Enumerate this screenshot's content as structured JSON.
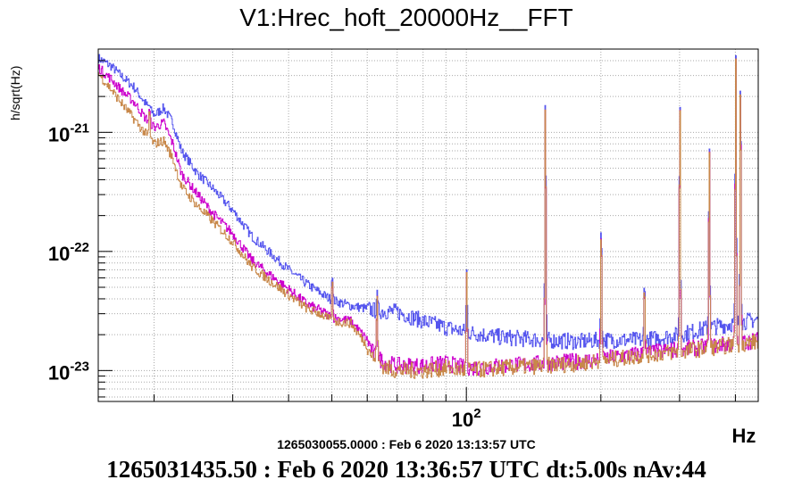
{
  "title": "V1:Hrec_hoft_20000Hz__FFT",
  "ylabel": "h/sqrt(Hz)",
  "xunit": "Hz",
  "reference_label": "1265030055.0000 : Feb  6 2020 13:13:57 UTC",
  "footer": "1265031435.50 : Feb  6 2020 13:36:57 UTC dt:5.00s nAv:44",
  "colors": {
    "current": "#5555ee",
    "reference": "#cc00cc",
    "third": "#c8884a",
    "reference_label": "#cc00cc",
    "grid": "#aaaaaa"
  },
  "chart_data": {
    "type": "line",
    "title": "V1:Hrec_hoft_20000Hz__FFT",
    "ylabel": "h/sqrt(Hz)",
    "xlabel": "Hz",
    "xscale": "log",
    "yscale": "log",
    "xlim": [
      15,
      450
    ],
    "ylim": [
      5.5e-24,
      5e-21
    ],
    "grid": true,
    "y_ticks": [
      {
        "value": 1e-21,
        "mant": "10",
        "exp": "-21"
      },
      {
        "value": 1e-22,
        "mant": "10",
        "exp": "-22"
      },
      {
        "value": 1e-23,
        "mant": "10",
        "exp": "-23"
      }
    ],
    "x_ticks": [
      {
        "value": 100,
        "mant": "10",
        "exp": "2"
      }
    ],
    "series": [
      {
        "color": "#5555ee",
        "points": [
          [
            15,
            4.2e-21
          ],
          [
            16,
            3.6e-21
          ],
          [
            17,
            2.9e-21
          ],
          [
            18,
            2.4e-21
          ],
          [
            19,
            1.8e-21
          ],
          [
            20,
            1.4e-21
          ],
          [
            21,
            1.6e-21
          ],
          [
            22,
            1.2e-21
          ],
          [
            23,
            7e-22
          ],
          [
            25,
            4.5e-22
          ],
          [
            27,
            3.4e-22
          ],
          [
            30,
            2.2e-22
          ],
          [
            33,
            1.35e-22
          ],
          [
            36,
            1e-22
          ],
          [
            40,
            7e-23
          ],
          [
            44,
            5.3e-23
          ],
          [
            47,
            4.5e-23
          ],
          [
            50,
            3.9e-23
          ],
          [
            55,
            3.5e-23
          ],
          [
            60,
            3.3e-23
          ],
          [
            62,
            3.2e-23
          ],
          [
            70,
            3.1e-23
          ],
          [
            80,
            2.6e-23
          ],
          [
            90,
            2.3e-23
          ],
          [
            100,
            2.1e-23
          ],
          [
            120,
            1.9e-23
          ],
          [
            150,
            1.8e-23
          ],
          [
            180,
            1.75e-23
          ],
          [
            200,
            1.8e-23
          ],
          [
            250,
            1.8e-23
          ],
          [
            300,
            2e-23
          ],
          [
            350,
            2.3e-23
          ],
          [
            400,
            2.5e-23
          ],
          [
            450,
            2.7e-23
          ]
        ]
      },
      {
        "color": "#cc00cc",
        "points": [
          [
            15,
            3.5e-21
          ],
          [
            16,
            2.8e-21
          ],
          [
            17,
            2.2e-21
          ],
          [
            18,
            1.8e-21
          ],
          [
            19,
            1.35e-21
          ],
          [
            20,
            1.1e-21
          ],
          [
            21,
            1.2e-21
          ],
          [
            22,
            8e-22
          ],
          [
            23,
            4.5e-22
          ],
          [
            25,
            3e-22
          ],
          [
            27,
            2.1e-22
          ],
          [
            30,
            1.4e-22
          ],
          [
            33,
            8.5e-23
          ],
          [
            36,
            6.5e-23
          ],
          [
            40,
            4.8e-23
          ],
          [
            44,
            3.6e-23
          ],
          [
            47,
            3.2e-23
          ],
          [
            50,
            2.8e-23
          ],
          [
            55,
            2.6e-23
          ],
          [
            60,
            1.8e-23
          ],
          [
            62,
            1.35e-23
          ],
          [
            66,
            1.15e-23
          ],
          [
            70,
            1.1e-23
          ],
          [
            80,
            1.1e-23
          ],
          [
            90,
            1.15e-23
          ],
          [
            100,
            1.05e-23
          ],
          [
            120,
            1.1e-23
          ],
          [
            150,
            1.15e-23
          ],
          [
            180,
            1.2e-23
          ],
          [
            200,
            1.25e-23
          ],
          [
            250,
            1.4e-23
          ],
          [
            300,
            1.5e-23
          ],
          [
            350,
            1.6e-23
          ],
          [
            400,
            1.7e-23
          ],
          [
            450,
            1.8e-23
          ]
        ]
      },
      {
        "color": "#c8884a",
        "points": [
          [
            15,
            3.1e-21
          ],
          [
            16,
            2.3e-21
          ],
          [
            17,
            1.7e-21
          ],
          [
            18,
            1.3e-21
          ],
          [
            19,
            1e-21
          ],
          [
            20,
            8e-22
          ],
          [
            21,
            8.5e-22
          ],
          [
            22,
            6e-22
          ],
          [
            23,
            3.5e-22
          ],
          [
            25,
            2.4e-22
          ],
          [
            27,
            1.8e-22
          ],
          [
            30,
            1.2e-22
          ],
          [
            33,
            7.5e-23
          ],
          [
            36,
            5.8e-23
          ],
          [
            40,
            4.3e-23
          ],
          [
            44,
            3.3e-23
          ],
          [
            47,
            3e-23
          ],
          [
            50,
            2.6e-23
          ],
          [
            55,
            2.5e-23
          ],
          [
            60,
            1.6e-23
          ],
          [
            62,
            1.25e-23
          ],
          [
            66,
            1.05e-23
          ],
          [
            70,
            1e-23
          ],
          [
            80,
            1e-23
          ],
          [
            90,
            1.05e-23
          ],
          [
            100,
            1e-23
          ],
          [
            120,
            1.05e-23
          ],
          [
            150,
            1.1e-23
          ],
          [
            180,
            1.15e-23
          ],
          [
            200,
            1.2e-23
          ],
          [
            250,
            1.35e-23
          ],
          [
            300,
            1.45e-23
          ],
          [
            350,
            1.55e-23
          ],
          [
            400,
            1.65e-23
          ],
          [
            450,
            1.75e-23
          ]
        ]
      }
    ],
    "lines": [
      {
        "f": 19.5,
        "v": 1.7e-21
      },
      {
        "f": 50,
        "v": 6.5e-23
      },
      {
        "f": 63,
        "v": 4.8e-23
      },
      {
        "f": 100,
        "v": 7e-23
      },
      {
        "f": 150,
        "v": 2.4e-21
      },
      {
        "f": 200,
        "v": 2e-22
      },
      {
        "f": 250,
        "v": 6e-23
      },
      {
        "f": 300,
        "v": 2.3e-21
      },
      {
        "f": 349,
        "v": 9e-22
      },
      {
        "f": 400,
        "v": 5e-21
      },
      {
        "f": 410,
        "v": 4e-21
      }
    ]
  }
}
